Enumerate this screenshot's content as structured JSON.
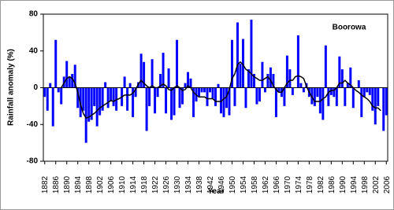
{
  "chart_data": {
    "type": "bar",
    "y_label": "Rainfall anomaly (%)",
    "x_label": "Year",
    "annotation": "Boorowa",
    "x": [
      1882,
      1883,
      1884,
      1885,
      1886,
      1887,
      1888,
      1889,
      1890,
      1891,
      1892,
      1893,
      1894,
      1895,
      1896,
      1897,
      1898,
      1899,
      1900,
      1901,
      1902,
      1903,
      1904,
      1905,
      1906,
      1907,
      1908,
      1909,
      1910,
      1911,
      1912,
      1913,
      1914,
      1915,
      1916,
      1917,
      1918,
      1919,
      1920,
      1921,
      1922,
      1923,
      1924,
      1925,
      1926,
      1927,
      1928,
      1929,
      1930,
      1931,
      1932,
      1933,
      1934,
      1935,
      1936,
      1937,
      1938,
      1939,
      1940,
      1941,
      1942,
      1943,
      1944,
      1945,
      1946,
      1947,
      1948,
      1949,
      1950,
      1951,
      1952,
      1953,
      1954,
      1955,
      1956,
      1957,
      1958,
      1959,
      1960,
      1961,
      1962,
      1963,
      1964,
      1965,
      1966,
      1967,
      1968,
      1969,
      1970,
      1971,
      1972,
      1973,
      1974,
      1975,
      1976,
      1977,
      1978,
      1979,
      1980,
      1981,
      1982,
      1983,
      1984,
      1985,
      1986,
      1987,
      1988,
      1989,
      1990,
      1991,
      1992,
      1993,
      1994,
      1995,
      1996,
      1997,
      1998,
      1999,
      2000,
      2001,
      2002,
      2003,
      2004,
      2005,
      2006
    ],
    "series": [
      {
        "type": "bar",
        "color": "#0000ff",
        "values": [
          -10,
          -25,
          5,
          -42,
          52,
          -5,
          -18,
          12,
          29,
          12,
          15,
          25,
          -22,
          -32,
          -25,
          -60,
          -37,
          -35,
          -20,
          -42,
          -30,
          -25,
          6,
          -22,
          -15,
          -20,
          -25,
          0,
          -20,
          12,
          -25,
          5,
          -32,
          -10,
          6,
          37,
          28,
          -47,
          -20,
          31,
          -28,
          -10,
          15,
          38,
          -28,
          21,
          -35,
          -30,
          52,
          -22,
          -18,
          5,
          17,
          10,
          -32,
          -15,
          -10,
          -5,
          -5,
          -20,
          -5,
          -12,
          -20,
          4,
          -28,
          -32,
          -22,
          -30,
          52,
          -20,
          71,
          26,
          53,
          -22,
          20,
          74,
          15,
          -18,
          -15,
          28,
          -5,
          15,
          22,
          15,
          -32,
          -5,
          -10,
          -20,
          35,
          20,
          -8,
          0,
          57,
          5,
          -5,
          5,
          -10,
          -18,
          -20,
          -10,
          -28,
          -35,
          46,
          -20,
          -8,
          -10,
          -20,
          34,
          20,
          -20,
          5,
          22,
          -22,
          0,
          8,
          -32,
          -10,
          -5,
          -8,
          -25,
          -40,
          -20,
          0,
          -47,
          -30
        ]
      },
      {
        "type": "line",
        "color": "#000000",
        "values": [
          null,
          null,
          null,
          null,
          null,
          null,
          0,
          5,
          10,
          12,
          10,
          5,
          -5,
          -18,
          -28,
          -33,
          -32,
          -30,
          -28,
          -25,
          -22,
          -20,
          -18,
          -16,
          -14,
          -15,
          -13,
          -12,
          -10,
          -8,
          -8,
          -8,
          -6,
          -2,
          4,
          8,
          5,
          2,
          0,
          2,
          0,
          0,
          2,
          4,
          2,
          -2,
          -3,
          0,
          2,
          0,
          -3,
          -2,
          2,
          0,
          -5,
          -8,
          -10,
          -10,
          -10,
          -12,
          -12,
          -12,
          -15,
          -15,
          -15,
          -12,
          -10,
          -2,
          10,
          15,
          25,
          28,
          25,
          20,
          18,
          15,
          12,
          10,
          8,
          8,
          10,
          12,
          8,
          2,
          -2,
          -5,
          -5,
          0,
          5,
          8,
          8,
          12,
          13,
          12,
          10,
          2,
          -5,
          -10,
          -15,
          -15,
          -15,
          -12,
          -10,
          -5,
          -3,
          -3,
          0,
          5,
          5,
          8,
          5,
          3,
          0,
          -3,
          -5,
          -8,
          -10,
          -12,
          -15,
          -20,
          -22,
          -22,
          -25,
          null,
          null
        ]
      }
    ],
    "xlim": [
      1881.5,
      2006.5
    ],
    "xticks": [
      1882,
      1886,
      1890,
      1894,
      1898,
      1902,
      1906,
      1910,
      1914,
      1918,
      1922,
      1926,
      1930,
      1934,
      1938,
      1942,
      1946,
      1950,
      1954,
      1958,
      1962,
      1966,
      1970,
      1974,
      1978,
      1982,
      1986,
      1990,
      1994,
      1998,
      2002,
      2006
    ],
    "ylim": [
      -80,
      80
    ],
    "yticks": [
      -80,
      -40,
      0,
      40,
      80
    ]
  }
}
